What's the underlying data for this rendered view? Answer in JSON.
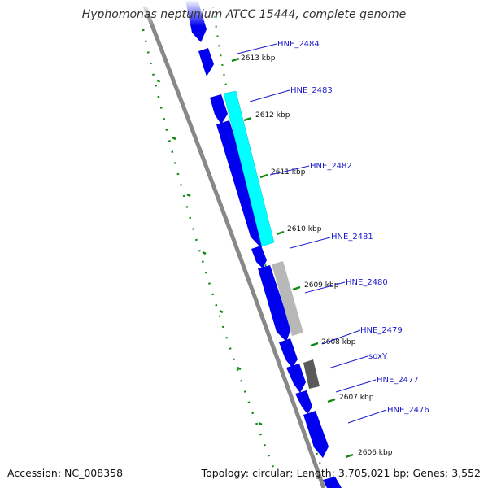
{
  "title": "Hyphomonas neptunium ATCC 15444, complete genome",
  "footer": {
    "accession": "Accession: NC_008358",
    "summary": "Topology: circular; Length: 3,705,021 bp; Genes: 3,552"
  },
  "ruler": [
    {
      "label": "2613 kbp"
    },
    {
      "label": "2612 kbp"
    },
    {
      "label": "2611 kbp"
    },
    {
      "label": "2610 kbp"
    },
    {
      "label": "2609 kbp"
    },
    {
      "label": "2608 kbp"
    },
    {
      "label": "2607 kbp"
    },
    {
      "label": "2606 kbp"
    }
  ],
  "genes": [
    {
      "label": "HNE_2484"
    },
    {
      "label": "HNE_2483"
    },
    {
      "label": "HNE_2482"
    },
    {
      "label": "HNE_2481"
    },
    {
      "label": "HNE_2480"
    },
    {
      "label": "HNE_2479"
    },
    {
      "label": "soxY"
    },
    {
      "label": "HNE_2477"
    },
    {
      "label": "HNE_2476"
    }
  ],
  "colors": {
    "forward_gene": "#0000ee",
    "highlight_gene": "#00ffff",
    "gray_gene": "#b8b8b8",
    "dark_gene": "#5a5a5a",
    "backbone": "#888888",
    "ticks": "#118811",
    "label_line": "#1a1acc"
  }
}
